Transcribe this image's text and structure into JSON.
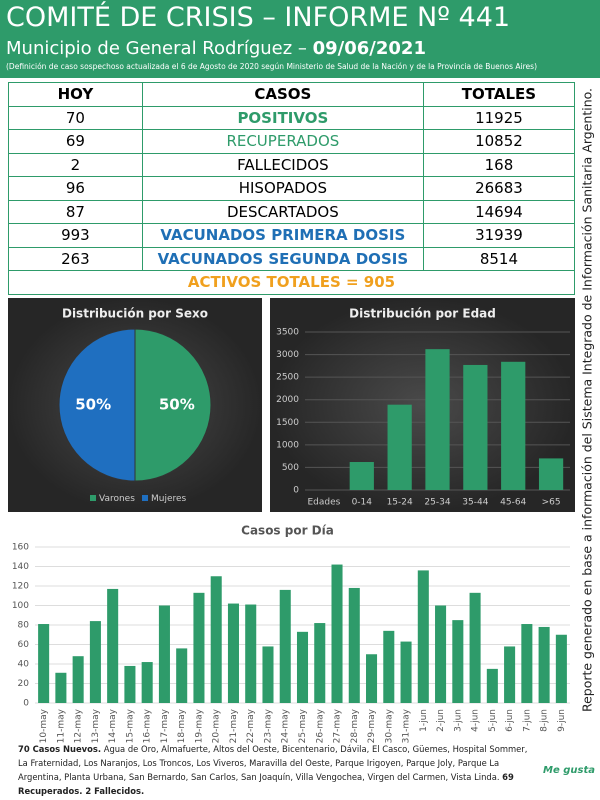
{
  "header": {
    "title": "COMITÉ DE CRISIS – INFORME Nº 441",
    "subtitle": "Municipio de General Rodríguez – ",
    "date": "09/06/2021",
    "note": "(Definición de caso sospechoso actualizada el 6 de Agosto de 2020 según Ministerio de Salud de la Nación y de la Provincia de Buenos Aires)"
  },
  "table": {
    "columns": [
      "HOY",
      "CASOS",
      "TOTALES"
    ],
    "rows": [
      [
        "70",
        "POSITIVOS",
        "11925"
      ],
      [
        "69",
        "RECUPERADOS",
        "10852"
      ],
      [
        "2",
        "FALLECIDOS",
        "168"
      ],
      [
        "96",
        "HISOPADOS",
        "26683"
      ],
      [
        "87",
        "DESCARTADOS",
        "14694"
      ],
      [
        "993",
        "VACUNADOS PRIMERA DOSIS",
        "31939"
      ],
      [
        "263",
        "VACUNADOS SEGUNDA DOSIS",
        "8514"
      ]
    ],
    "total": "ACTIVOS TOTALES = 905"
  },
  "chart_data": [
    {
      "type": "pie",
      "title": "Distribución por Sexo",
      "categories": [
        "Varones",
        "Mujeres"
      ],
      "values": [
        50,
        50
      ],
      "value_labels": [
        "50%",
        "50%"
      ],
      "colors": [
        "#2e9b6a",
        "#1f6fc0"
      ],
      "legend": "bottom"
    },
    {
      "type": "bar",
      "title": "Distribución por Edad",
      "categories": [
        "Edades",
        "0-14",
        "15-24",
        "25-34",
        "35-44",
        "45-64",
        ">65"
      ],
      "values": [
        null,
        620,
        1890,
        3120,
        2770,
        2840,
        700
      ],
      "color": "#2e9b6a",
      "ylim": [
        0,
        3500
      ],
      "yticks": [
        0,
        500,
        1000,
        1500,
        2000,
        2500,
        3000,
        3500
      ],
      "grid": true
    },
    {
      "type": "bar",
      "title": "Casos por Día",
      "categories": [
        "10-may",
        "11-may",
        "12-may",
        "13-may",
        "14-may",
        "15-may",
        "16-may",
        "17-may",
        "18-may",
        "19-may",
        "20-may",
        "21-may",
        "22-may",
        "23-may",
        "24-may",
        "25-may",
        "26-may",
        "27-may",
        "28-may",
        "29-may",
        "30-may",
        "31-may",
        "1-jun",
        "2-jun",
        "3-jun",
        "4-jun",
        "5-jun",
        "6-jun",
        "7-jun",
        "8-jun",
        "9-jun"
      ],
      "values": [
        81,
        31,
        48,
        84,
        117,
        38,
        42,
        100,
        56,
        113,
        130,
        102,
        101,
        58,
        116,
        73,
        82,
        142,
        118,
        50,
        74,
        63,
        136,
        100,
        85,
        113,
        35,
        58,
        81,
        78,
        70
      ],
      "color": "#2e9b6a",
      "ylim": [
        0,
        160
      ],
      "yticks": [
        0,
        20,
        40,
        60,
        80,
        100,
        120,
        140,
        160
      ],
      "grid": true
    }
  ],
  "footer": {
    "bold1": "70 Casos Nuevos.",
    "text": " Agua de Oro, Almafuerte, Altos del Oeste, Bicentenario, Dávila, El Casco, Güemes, Hospital Sommer, La Fraternidad, Los Naranjos, Los Troncos, Los Viveros, Maravilla del Oeste, Parque Irigoyen, Parque Joly, Parque La Argentina, Planta Urbana, San Bernardo, San Carlos, San Joaquín, Villa Vengochea, Virgen del Carmen, Vista Linda. ",
    "bold2": "69 Recuperados. 2 Fallecidos."
  },
  "side_note": "Reporte generado en base a información del Sistema Integrado de Información Sanitaria Argentino.",
  "logo": "Me gusta"
}
